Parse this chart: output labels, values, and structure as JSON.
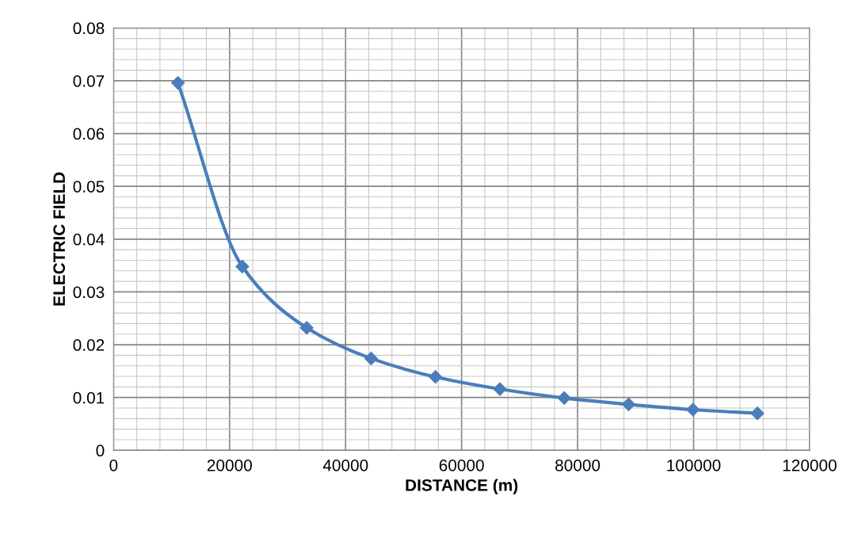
{
  "chart_data": {
    "type": "line",
    "xlabel": "DISTANCE (m)",
    "ylabel": "ELECTRIC FIELD",
    "x": [
      11100,
      22200,
      33300,
      44400,
      55500,
      66600,
      77700,
      88800,
      99900,
      111000
    ],
    "series": [
      {
        "color": "#4a7ebb",
        "values": [
          0.0696,
          0.0348,
          0.0232,
          0.0174,
          0.0139,
          0.0116,
          0.0099,
          0.0087,
          0.0077,
          0.007
        ]
      }
    ],
    "xlim": [
      0,
      120000
    ],
    "xticks": [
      0,
      20000,
      40000,
      60000,
      80000,
      100000,
      120000
    ],
    "ylim": [
      0,
      0.08
    ],
    "yticks": [
      0,
      0.01,
      0.02,
      0.03,
      0.04,
      0.05,
      0.06,
      0.07,
      0.08
    ],
    "grid": true,
    "marker": "diamond",
    "line_style": "solid",
    "legend": false
  }
}
